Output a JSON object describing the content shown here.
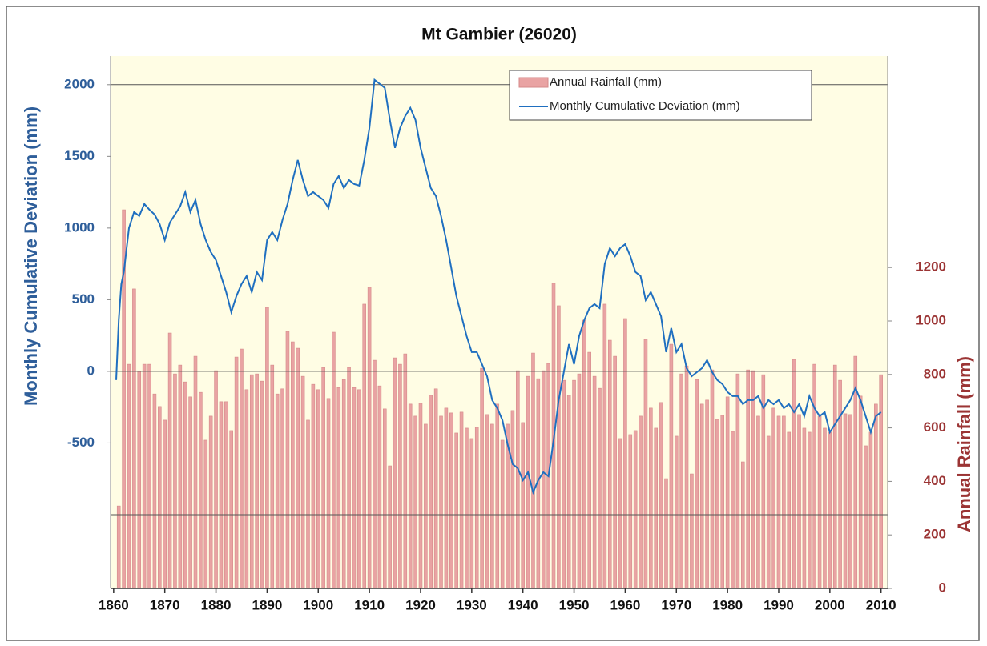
{
  "chart_data": {
    "type": "combo",
    "title": "Mt Gambier  (26020)",
    "y_label": "Monthly Cumulative Deviation (mm)",
    "y2_label": "Annual Rainfall (mm)",
    "xlim": [
      1859.4,
      2011.3
    ],
    "xticks": [
      1860,
      1870,
      1880,
      1890,
      1900,
      1910,
      1920,
      1930,
      1940,
      1950,
      1960,
      1970,
      1980,
      1990,
      2000,
      2010
    ],
    "ylim": [
      -1514,
      2200
    ],
    "yticks": [
      -500,
      0,
      500,
      1000,
      1500,
      2000
    ],
    "ygrid": [
      -1000,
      0,
      2000
    ],
    "y2lim": [
      0,
      1991
    ],
    "y2ticks": [
      0,
      200,
      400,
      600,
      800,
      1000,
      1200
    ],
    "legend": "top-right",
    "series": [
      {
        "name": "Annual Rainfall (mm)",
        "type": "bar",
        "axis": "y2",
        "color": "#e9a3a3",
        "x": [
          1861,
          1862,
          1863,
          1864,
          1865,
          1866,
          1867,
          1868,
          1869,
          1870,
          1871,
          1872,
          1873,
          1874,
          1875,
          1876,
          1877,
          1878,
          1879,
          1880,
          1881,
          1882,
          1883,
          1884,
          1885,
          1886,
          1887,
          1888,
          1889,
          1890,
          1891,
          1892,
          1893,
          1894,
          1895,
          1896,
          1897,
          1898,
          1899,
          1900,
          1901,
          1902,
          1903,
          1904,
          1905,
          1906,
          1907,
          1908,
          1909,
          1910,
          1911,
          1912,
          1913,
          1914,
          1915,
          1916,
          1917,
          1918,
          1919,
          1920,
          1921,
          1922,
          1923,
          1924,
          1925,
          1926,
          1927,
          1928,
          1929,
          1930,
          1931,
          1932,
          1933,
          1934,
          1935,
          1936,
          1937,
          1938,
          1939,
          1940,
          1941,
          1942,
          1943,
          1944,
          1945,
          1946,
          1947,
          1948,
          1949,
          1950,
          1951,
          1952,
          1953,
          1954,
          1955,
          1956,
          1957,
          1958,
          1959,
          1960,
          1961,
          1962,
          1963,
          1964,
          1965,
          1966,
          1967,
          1968,
          1969,
          1970,
          1971,
          1972,
          1973,
          1974,
          1975,
          1976,
          1977,
          1978,
          1979,
          1980,
          1981,
          1982,
          1983,
          1984,
          1985,
          1986,
          1987,
          1988,
          1989,
          1990,
          1991,
          1992,
          1993,
          1994,
          1995,
          1996,
          1997,
          1998,
          1999,
          2000,
          2001,
          2002,
          2003,
          2004,
          2005,
          2006,
          2007,
          2008,
          2009,
          2010
        ],
        "values": [
          308,
          1416,
          838,
          1120,
          811,
          838,
          838,
          727,
          680,
          629,
          955,
          802,
          835,
          772,
          716,
          868,
          733,
          554,
          644,
          814,
          698,
          698,
          590,
          865,
          895,
          743,
          799,
          802,
          775,
          1051,
          835,
          727,
          746,
          961,
          922,
          898,
          793,
          629,
          763,
          743,
          826,
          710,
          958,
          751,
          781,
          826,
          751,
          743,
          1063,
          1126,
          853,
          757,
          671,
          458,
          862,
          838,
          877,
          689,
          644,
          692,
          614,
          722,
          746,
          644,
          674,
          656,
          581,
          659,
          599,
          560,
          602,
          823,
          650,
          614,
          689,
          554,
          614,
          665,
          814,
          620,
          793,
          880,
          784,
          814,
          841,
          1141,
          1057,
          778,
          722,
          778,
          802,
          1003,
          883,
          793,
          748,
          1063,
          928,
          868,
          560,
          1009,
          575,
          590,
          644,
          931,
          674,
          599,
          695,
          410,
          913,
          569,
          802,
          832,
          428,
          781,
          689,
          704,
          817,
          632,
          647,
          716,
          587,
          802,
          473,
          817,
          814,
          644,
          799,
          569,
          674,
          644,
          644,
          584,
          856,
          650,
          599,
          584,
          838,
          644,
          599,
          584,
          835,
          778,
          653,
          650,
          868,
          719,
          533,
          584,
          689,
          799
        ]
      },
      {
        "name": "Monthly Cumulative Deviation (mm)",
        "type": "line",
        "color": "#1f6fc0",
        "x": [
          1860.5,
          1861,
          1861.5,
          1862,
          1863,
          1864,
          1865,
          1866,
          1867,
          1868,
          1869,
          1870,
          1871,
          1872,
          1873,
          1874,
          1875,
          1876,
          1877,
          1878,
          1879,
          1880,
          1881,
          1882,
          1883,
          1884,
          1885,
          1886,
          1887,
          1888,
          1889,
          1890,
          1891,
          1892,
          1893,
          1894,
          1895,
          1896,
          1897,
          1898,
          1899,
          1900,
          1901,
          1902,
          1903,
          1904,
          1905,
          1906,
          1907,
          1908,
          1909,
          1910,
          1911,
          1912,
          1913,
          1914,
          1915,
          1916,
          1917,
          1918,
          1919,
          1920,
          1921,
          1922,
          1923,
          1924,
          1925,
          1926,
          1927,
          1928,
          1929,
          1930,
          1931,
          1932,
          1933,
          1934,
          1935,
          1936,
          1937,
          1938,
          1939,
          1940,
          1941,
          1942,
          1943,
          1944,
          1945,
          1946,
          1947,
          1948,
          1949,
          1950,
          1951,
          1952,
          1953,
          1954,
          1955,
          1956,
          1957,
          1958,
          1959,
          1960,
          1961,
          1962,
          1963,
          1964,
          1965,
          1966,
          1967,
          1968,
          1969,
          1970,
          1971,
          1972,
          1973,
          1974,
          1975,
          1976,
          1977,
          1978,
          1979,
          1980,
          1981,
          1982,
          1983,
          1984,
          1985,
          1986,
          1987,
          1988,
          1989,
          1990,
          1991,
          1992,
          1993,
          1994,
          1995,
          1996,
          1997,
          1998,
          1999,
          2000,
          2001,
          2002,
          2003,
          2004,
          2005,
          2006,
          2007,
          2008,
          2009,
          2010
        ],
        "values": [
          -61,
          358,
          609,
          693,
          1000,
          1112,
          1084,
          1168,
          1128,
          1095,
          1028,
          916,
          1039,
          1095,
          1151,
          1251,
          1112,
          1196,
          1028,
          916,
          832,
          777,
          665,
          553,
          413,
          525,
          609,
          665,
          553,
          693,
          637,
          916,
          972,
          916,
          1056,
          1168,
          1335,
          1475,
          1335,
          1223,
          1251,
          1223,
          1196,
          1140,
          1307,
          1363,
          1279,
          1335,
          1307,
          1296,
          1475,
          1698,
          2034,
          2006,
          1978,
          1754,
          1559,
          1698,
          1782,
          1838,
          1754,
          1559,
          1419,
          1279,
          1223,
          1084,
          916,
          721,
          525,
          385,
          246,
          134,
          134,
          50,
          -34,
          -201,
          -257,
          -341,
          -508,
          -648,
          -676,
          -760,
          -704,
          -844,
          -760,
          -704,
          -732,
          -480,
          -201,
          -6,
          190,
          50,
          246,
          358,
          441,
          469,
          441,
          749,
          860,
          804,
          860,
          888,
          804,
          693,
          665,
          497,
          553,
          469,
          385,
          134,
          302,
          134,
          190,
          22,
          -34,
          -6,
          22,
          78,
          -6,
          -61,
          -89,
          -145,
          -173,
          -173,
          -229,
          -201,
          -201,
          -173,
          -257,
          -201,
          -229,
          -201,
          -257,
          -229,
          -285,
          -229,
          -313,
          -173,
          -257,
          -313,
          -285,
          -425,
          -369,
          -313,
          -257,
          -201,
          -117,
          -201,
          -313,
          -425,
          -313,
          -285
        ]
      }
    ]
  }
}
